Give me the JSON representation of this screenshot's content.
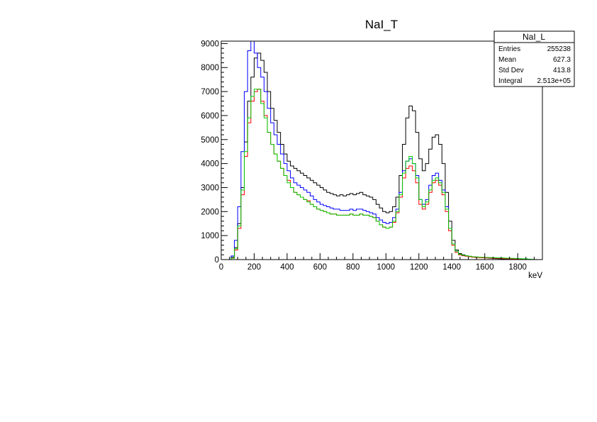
{
  "chart_data": {
    "type": "line",
    "title": "NaI_T",
    "xlabel": "keV",
    "ylabel": "",
    "xlim": [
      0,
      1950
    ],
    "ylim": [
      0,
      9100
    ],
    "x_ticks": [
      0,
      200,
      400,
      600,
      800,
      1000,
      1200,
      1400,
      1600,
      1800
    ],
    "y_ticks": [
      0,
      1000,
      2000,
      3000,
      4000,
      5000,
      6000,
      7000,
      8000,
      9000
    ],
    "grid": false,
    "legend": "none",
    "style": "step histogram",
    "stats_box": {
      "title": "NaI_L",
      "rows": [
        {
          "label": "Entries",
          "value": "255238"
        },
        {
          "label": "Mean",
          "value": "627.3"
        },
        {
          "label": "Std Dev",
          "value": "413.8"
        },
        {
          "label": "Integral",
          "value": "2.513e+05"
        }
      ]
    },
    "x": [
      0,
      20,
      40,
      60,
      80,
      100,
      120,
      140,
      160,
      180,
      200,
      220,
      240,
      260,
      280,
      300,
      320,
      340,
      360,
      380,
      400,
      420,
      440,
      460,
      480,
      500,
      520,
      540,
      560,
      580,
      600,
      620,
      640,
      660,
      680,
      700,
      720,
      740,
      760,
      780,
      800,
      820,
      840,
      860,
      880,
      900,
      920,
      940,
      960,
      980,
      1000,
      1020,
      1040,
      1060,
      1080,
      1100,
      1120,
      1140,
      1160,
      1180,
      1200,
      1220,
      1240,
      1260,
      1280,
      1300,
      1320,
      1340,
      1360,
      1380,
      1400,
      1420,
      1440,
      1460,
      1480,
      1500,
      1520,
      1540,
      1560,
      1580,
      1600,
      1620,
      1640,
      1660,
      1680,
      1700,
      1720,
      1740,
      1760,
      1780,
      1800,
      1820,
      1840,
      1860,
      1880,
      1900,
      1920,
      1940
    ],
    "series": [
      {
        "color": "#000000",
        "values": [
          0,
          0,
          0,
          100,
          500,
          1500,
          3000,
          4900,
          6600,
          7600,
          8400,
          8600,
          8300,
          7800,
          7000,
          6300,
          5800,
          5300,
          4800,
          4400,
          4100,
          3900,
          3800,
          3700,
          3600,
          3500,
          3400,
          3300,
          3200,
          3100,
          3000,
          2900,
          2800,
          2750,
          2700,
          2650,
          2700,
          2650,
          2700,
          2750,
          2700,
          2750,
          2800,
          2700,
          2650,
          2600,
          2500,
          2300,
          2150,
          2000,
          1950,
          2000,
          2200,
          2600,
          3500,
          4800,
          5900,
          6400,
          6200,
          5300,
          4200,
          3700,
          4000,
          4600,
          5100,
          5200,
          4800,
          4000,
          2800,
          1600,
          800,
          400,
          250,
          200,
          160,
          130,
          110,
          100,
          90,
          80,
          70,
          60,
          50,
          40,
          35,
          30,
          25,
          20,
          15,
          10,
          10,
          5,
          5,
          5,
          0,
          0,
          0,
          0
        ]
      },
      {
        "color": "#0000ff",
        "values": [
          0,
          0,
          0,
          150,
          800,
          2200,
          4500,
          7000,
          8700,
          9100,
          8600,
          8000,
          7600,
          7000,
          6300,
          5700,
          5200,
          4800,
          4400,
          4000,
          3700,
          3400,
          3200,
          3100,
          3000,
          2900,
          2800,
          2650,
          2500,
          2400,
          2300,
          2250,
          2200,
          2150,
          2100,
          2100,
          2050,
          2050,
          2050,
          2100,
          2050,
          2100,
          2100,
          2050,
          2000,
          1950,
          1900,
          1750,
          1650,
          1550,
          1500,
          1550,
          1750,
          2100,
          2800,
          3700,
          4100,
          4200,
          4000,
          3500,
          2500,
          2300,
          2500,
          3100,
          3500,
          3600,
          3300,
          2900,
          2200,
          1300,
          650,
          350,
          220,
          180,
          150,
          130,
          110,
          100,
          90,
          85,
          75,
          70,
          65,
          55,
          50,
          45,
          40,
          35,
          30,
          25,
          20,
          15,
          10,
          5,
          0,
          0,
          0,
          0
        ]
      },
      {
        "color": "#ff0000",
        "values": [
          0,
          0,
          0,
          50,
          400,
          1300,
          2700,
          4300,
          5700,
          6600,
          7000,
          7100,
          6600,
          6000,
          5300,
          4800,
          4400,
          4100,
          3800,
          3500,
          3300,
          3000,
          2800,
          2700,
          2600,
          2500,
          2450,
          2300,
          2200,
          2100,
          2050,
          2000,
          1950,
          1900,
          1900,
          1850,
          1850,
          1850,
          1850,
          1900,
          1850,
          1850,
          1900,
          1850,
          1850,
          1800,
          1750,
          1600,
          1450,
          1350,
          1300,
          1350,
          1550,
          1950,
          2600,
          3400,
          3800,
          3900,
          3700,
          3200,
          2300,
          2100,
          2300,
          2800,
          3200,
          3300,
          3100,
          2700,
          2000,
          1200,
          600,
          300,
          200,
          160,
          140,
          120,
          100,
          90,
          80,
          75,
          70,
          65,
          60,
          55,
          50,
          45,
          40,
          35,
          30,
          25,
          20,
          15,
          10,
          5,
          0,
          0,
          0,
          0
        ]
      },
      {
        "color": "#00cc00",
        "values": [
          0,
          0,
          0,
          60,
          450,
          1400,
          2900,
          4500,
          5900,
          6800,
          7100,
          7100,
          6500,
          5900,
          5300,
          4800,
          4400,
          4100,
          3800,
          3500,
          3200,
          3000,
          2800,
          2700,
          2600,
          2500,
          2400,
          2300,
          2200,
          2100,
          2050,
          2000,
          1950,
          1900,
          1900,
          1850,
          1850,
          1850,
          1850,
          1900,
          1850,
          1850,
          1900,
          1850,
          1850,
          1800,
          1750,
          1600,
          1450,
          1350,
          1300,
          1350,
          1600,
          2000,
          2700,
          3600,
          4100,
          4300,
          4000,
          3400,
          2500,
          2200,
          2400,
          2900,
          3300,
          3400,
          3200,
          2800,
          2100,
          1300,
          650,
          350,
          220,
          180,
          160,
          140,
          120,
          110,
          100,
          95,
          90,
          85,
          80,
          75,
          70,
          65,
          60,
          55,
          50,
          45,
          40,
          35,
          30,
          20,
          10,
          5,
          0,
          0
        ]
      }
    ]
  }
}
